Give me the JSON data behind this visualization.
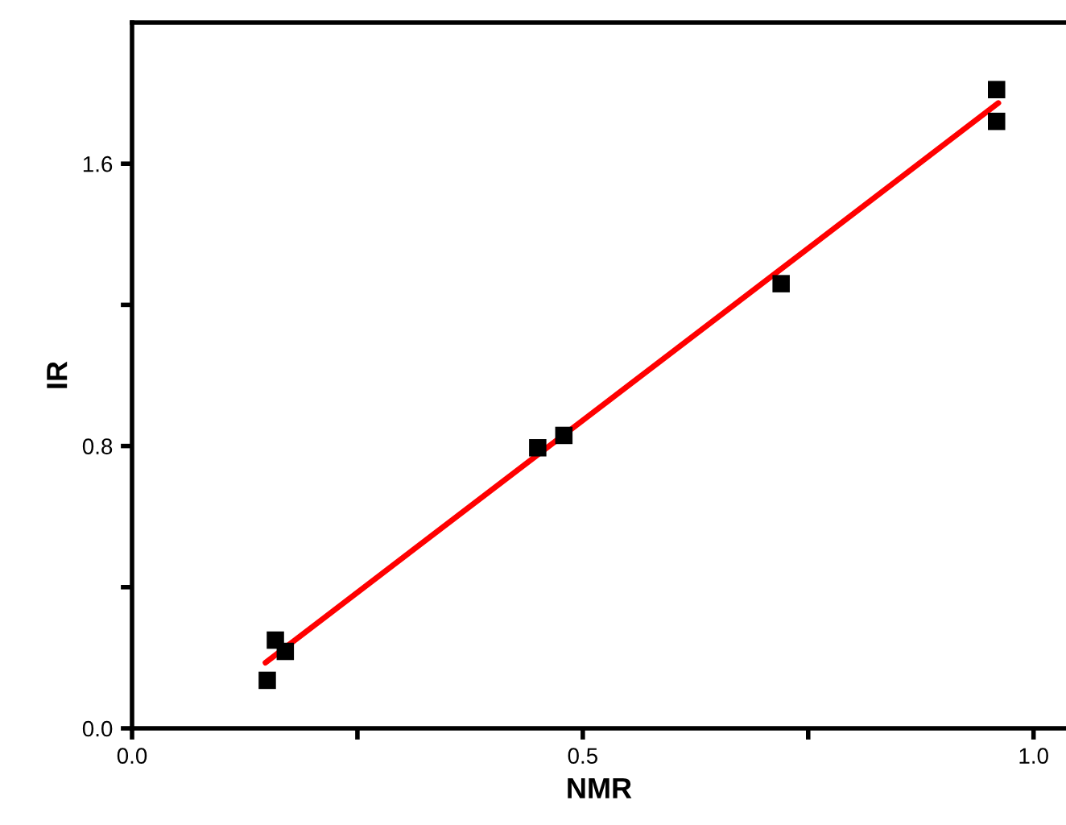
{
  "chart_data": {
    "type": "scatter",
    "xlabel": "NMR",
    "ylabel": "IR",
    "xlim": [
      0,
      1.036
    ],
    "ylim": [
      0,
      2.0
    ],
    "xticks": [
      {
        "value": 0,
        "label": "0.0"
      },
      {
        "value": 0.25,
        "label": null
      },
      0.5,
      {
        "value": 0.75,
        "label": null
      },
      {
        "value": 1,
        "label": "1.0"
      }
    ],
    "yticks": [
      {
        "value": 0,
        "label": "0.0"
      },
      {
        "value": 0.4,
        "label": null
      },
      0.8,
      {
        "value": 1.2,
        "label": null
      },
      1.6
    ],
    "grid": false,
    "marker": "square",
    "series": [
      {
        "color": "#000000",
        "x": [
          0.15,
          0.159,
          0.17,
          0.45,
          0.479,
          0.72,
          0.959,
          0.959
        ],
        "values": [
          0.136,
          0.25,
          0.218,
          0.795,
          0.83,
          1.26,
          1.81,
          1.72
        ]
      },
      {
        "type": "line",
        "color": "#ff0000",
        "line_style": "solid",
        "marker": "none",
        "x": [
          0.148,
          0.961
        ],
        "values": [
          0.186,
          1.772
        ]
      }
    ]
  }
}
